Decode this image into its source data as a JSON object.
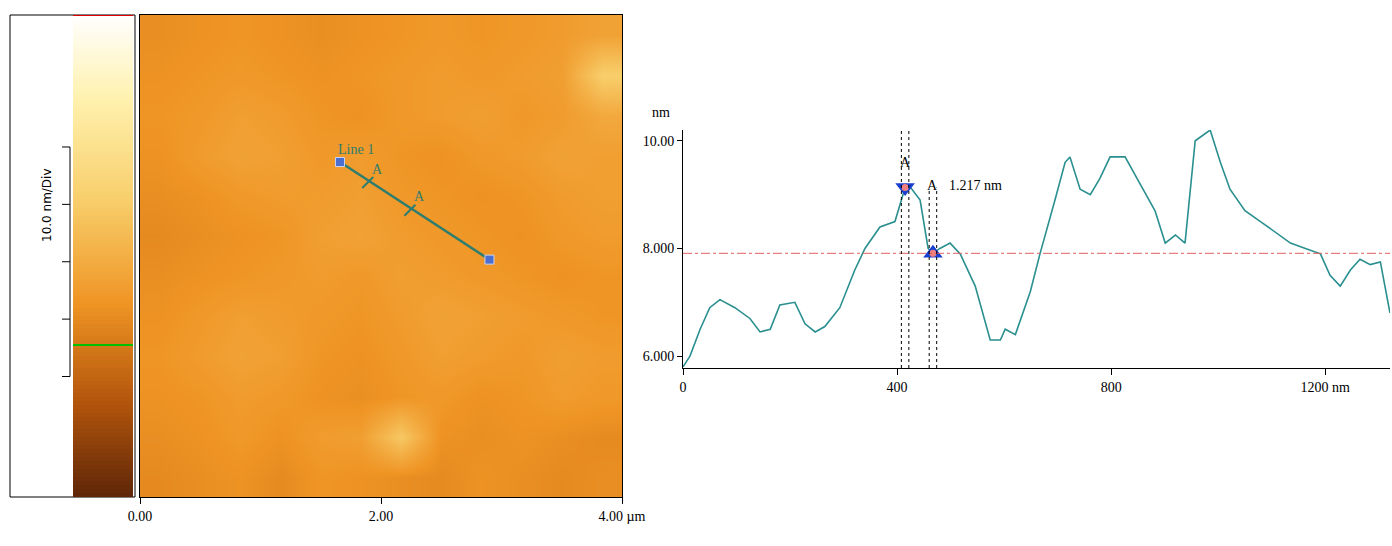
{
  "chart_data": [
    {
      "type": "heatmap",
      "xlim": [
        0,
        4
      ],
      "ylim": [
        0,
        4
      ],
      "xticks": [
        {
          "value": 0,
          "label": "0.00"
        },
        {
          "value": 2,
          "label": "2.00"
        },
        {
          "value": 4,
          "label": "4.00 µm"
        }
      ],
      "tick_labels": "x",
      "cells": [
        [
          31,
          32,
          33,
          31,
          34,
          33,
          32,
          31,
          33,
          32,
          31,
          32
        ],
        [
          32,
          33,
          35,
          33,
          36,
          37,
          50,
          33,
          32,
          33,
          32,
          31
        ],
        [
          33,
          34,
          36,
          35,
          33,
          32,
          34,
          35,
          33,
          34,
          36,
          35
        ],
        [
          34,
          36,
          38,
          37,
          34,
          33,
          35,
          37,
          36,
          35,
          37,
          36
        ],
        [
          33,
          35,
          37,
          36,
          35,
          34,
          36,
          38,
          37,
          36,
          35,
          34
        ],
        [
          32,
          33,
          34,
          35,
          36,
          35,
          37,
          36,
          35,
          34,
          33,
          34
        ],
        [
          31,
          32,
          33,
          34,
          37,
          38,
          36,
          35,
          34,
          33,
          35,
          36
        ],
        [
          32,
          33,
          35,
          36,
          36,
          37,
          35,
          34,
          33,
          34,
          36,
          37
        ],
        [
          33,
          36,
          38,
          37,
          35,
          36,
          34,
          33,
          35,
          36,
          38,
          37
        ],
        [
          34,
          35,
          37,
          36,
          34,
          33,
          35,
          36,
          37,
          35,
          36,
          40
        ],
        [
          33,
          34,
          35,
          34,
          33,
          34,
          35,
          36,
          35,
          36,
          37,
          52
        ],
        [
          32,
          33,
          34,
          33,
          32,
          33,
          34,
          35,
          34,
          35,
          36,
          38
        ]
      ],
      "colorbar": {
        "zlim": [
          0,
          84
        ],
        "ticks": [
          21,
          31,
          41,
          51,
          61
        ],
        "label": "10.0 nm/Div",
        "marks": [
          {
            "value": 84,
            "color": "#e00000"
          },
          {
            "value": 26.5,
            "color": "#00c000"
          }
        ]
      },
      "lines": [
        {
          "name": "Line 1",
          "color": "#2e7d6e",
          "x": [
            1.66,
            2.9
          ],
          "y": [
            2.78,
            1.97
          ],
          "cursors": [
            {
              "label": "A",
              "x": 1.89,
              "y": 2.61
            },
            {
              "label": "A",
              "x": 2.24,
              "y": 2.38
            }
          ]
        }
      ]
    },
    {
      "type": "line",
      "y_label": "nm",
      "xlim": [
        0,
        1321
      ],
      "ylim": [
        5.78,
        10.2
      ],
      "xticks": [
        0,
        400,
        800,
        {
          "value": 1200,
          "label": "1200 nm"
        }
      ],
      "yticks": [
        {
          "value": 6,
          "label": "6.000"
        },
        {
          "value": 8,
          "label": "8.000"
        },
        {
          "value": 10,
          "label": "10.00"
        }
      ],
      "series": [
        {
          "color": "#2a8f8f",
          "x": [
            0,
            13,
            32,
            50,
            69,
            97,
            125,
            144,
            163,
            181,
            209,
            228,
            247,
            265,
            293,
            321,
            340,
            368,
            396,
            415,
            424,
            443,
            458,
            467,
            480,
            499,
            518,
            546,
            574,
            593,
            602,
            621,
            649,
            667,
            695,
            714,
            723,
            742,
            761,
            779,
            798,
            826,
            854,
            882,
            901,
            920,
            938,
            957,
            985,
            1004,
            1022,
            1050,
            1079,
            1107,
            1135,
            1163,
            1191,
            1209,
            1228,
            1247,
            1265,
            1284,
            1303,
            1321
          ],
          "values": [
            5.8,
            6.0,
            6.5,
            6.9,
            7.05,
            6.9,
            6.7,
            6.45,
            6.5,
            6.95,
            7.0,
            6.6,
            6.45,
            6.55,
            6.9,
            7.6,
            8.0,
            8.4,
            8.5,
            9.13,
            9.15,
            8.9,
            8.0,
            7.91,
            8.0,
            8.1,
            7.9,
            7.3,
            6.3,
            6.3,
            6.5,
            6.4,
            7.2,
            7.9,
            8.9,
            9.6,
            9.7,
            9.1,
            9.0,
            9.3,
            9.7,
            9.7,
            9.2,
            8.7,
            8.1,
            8.25,
            8.1,
            10.0,
            10.2,
            9.6,
            9.1,
            8.7,
            8.5,
            8.3,
            8.1,
            8.0,
            7.9,
            7.5,
            7.3,
            7.6,
            7.8,
            7.7,
            7.75,
            6.8
          ]
        }
      ],
      "reference_line": {
        "value": 7.91,
        "color": "#e06060",
        "line_style": "dashdot"
      },
      "cursors": [
        {
          "label": "A",
          "x": 415,
          "y": 9.13,
          "marker": "triangle-down",
          "color": "#1a3fd0"
        },
        {
          "label": "A",
          "x": 467,
          "y": 7.91,
          "marker": "triangle-up",
          "color": "#1a3fd0"
        }
      ],
      "cursor_lines": [
        408,
        422,
        460,
        474
      ],
      "annotations": [
        {
          "text": "1.217 nm"
        }
      ]
    }
  ]
}
